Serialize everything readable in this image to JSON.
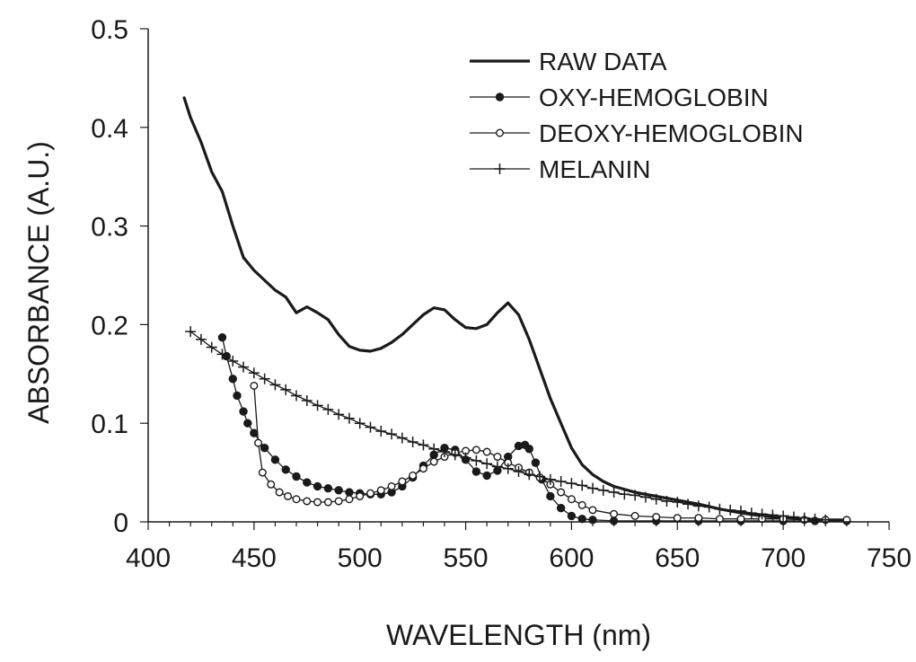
{
  "chart_data": {
    "type": "line",
    "title": "",
    "xlabel": "WAVELENGTH (nm)",
    "ylabel": "ABSORBANCE (A.U.)",
    "xlim": [
      400,
      750
    ],
    "ylim": [
      0,
      0.5
    ],
    "x_ticks": [
      400,
      450,
      500,
      550,
      600,
      650,
      700,
      750
    ],
    "x_tick_labels": [
      "400",
      "450",
      "500",
      "550",
      "600",
      "650",
      "700",
      "750"
    ],
    "y_ticks": [
      0,
      0.1,
      0.2,
      0.3,
      0.4,
      0.5
    ],
    "y_tick_labels": [
      "0",
      "0.1",
      "0.2",
      "0.3",
      "0.4",
      "0.5"
    ],
    "grid": false,
    "legend_position": "top-right",
    "color": "#1a1a1a",
    "series": [
      {
        "name": "RAW DATA",
        "marker": "none",
        "points": [
          [
            417,
            0.43
          ],
          [
            420,
            0.41
          ],
          [
            425,
            0.385
          ],
          [
            430,
            0.355
          ],
          [
            435,
            0.335
          ],
          [
            440,
            0.3
          ],
          [
            445,
            0.268
          ],
          [
            450,
            0.255
          ],
          [
            455,
            0.245
          ],
          [
            460,
            0.235
          ],
          [
            465,
            0.228
          ],
          [
            470,
            0.212
          ],
          [
            475,
            0.218
          ],
          [
            480,
            0.212
          ],
          [
            485,
            0.205
          ],
          [
            490,
            0.19
          ],
          [
            495,
            0.178
          ],
          [
            500,
            0.174
          ],
          [
            505,
            0.173
          ],
          [
            510,
            0.176
          ],
          [
            515,
            0.182
          ],
          [
            520,
            0.19
          ],
          [
            525,
            0.2
          ],
          [
            530,
            0.21
          ],
          [
            535,
            0.217
          ],
          [
            540,
            0.215
          ],
          [
            545,
            0.205
          ],
          [
            550,
            0.197
          ],
          [
            555,
            0.196
          ],
          [
            560,
            0.2
          ],
          [
            565,
            0.212
          ],
          [
            570,
            0.222
          ],
          [
            575,
            0.21
          ],
          [
            580,
            0.185
          ],
          [
            585,
            0.155
          ],
          [
            590,
            0.125
          ],
          [
            595,
            0.1
          ],
          [
            600,
            0.075
          ],
          [
            605,
            0.058
          ],
          [
            610,
            0.048
          ],
          [
            615,
            0.041
          ],
          [
            620,
            0.036
          ],
          [
            630,
            0.03
          ],
          [
            640,
            0.026
          ],
          [
            650,
            0.022
          ],
          [
            660,
            0.018
          ],
          [
            670,
            0.013
          ],
          [
            680,
            0.009
          ],
          [
            690,
            0.006
          ],
          [
            700,
            0.004
          ],
          [
            710,
            0.003
          ],
          [
            720,
            0.002
          ],
          [
            730,
            0.002
          ]
        ]
      },
      {
        "name": "OXY-HEMOGLOBIN",
        "marker": "filled-circle",
        "points": [
          [
            435,
            0.187
          ],
          [
            437,
            0.168
          ],
          [
            440,
            0.145
          ],
          [
            442,
            0.128
          ],
          [
            445,
            0.112
          ],
          [
            447,
            0.1
          ],
          [
            450,
            0.09
          ],
          [
            455,
            0.075
          ],
          [
            460,
            0.063
          ],
          [
            465,
            0.053
          ],
          [
            470,
            0.046
          ],
          [
            475,
            0.04
          ],
          [
            480,
            0.036
          ],
          [
            485,
            0.034
          ],
          [
            490,
            0.032
          ],
          [
            495,
            0.03
          ],
          [
            500,
            0.029
          ],
          [
            505,
            0.028
          ],
          [
            510,
            0.028
          ],
          [
            515,
            0.03
          ],
          [
            520,
            0.036
          ],
          [
            525,
            0.045
          ],
          [
            530,
            0.057
          ],
          [
            535,
            0.068
          ],
          [
            540,
            0.075
          ],
          [
            545,
            0.073
          ],
          [
            550,
            0.063
          ],
          [
            555,
            0.051
          ],
          [
            560,
            0.047
          ],
          [
            565,
            0.052
          ],
          [
            570,
            0.066
          ],
          [
            575,
            0.077
          ],
          [
            578,
            0.078
          ],
          [
            580,
            0.074
          ],
          [
            583,
            0.06
          ],
          [
            586,
            0.043
          ],
          [
            590,
            0.026
          ],
          [
            595,
            0.014
          ],
          [
            600,
            0.006
          ],
          [
            605,
            0.003
          ],
          [
            610,
            0.002
          ],
          [
            620,
            0.001
          ],
          [
            640,
            0.001
          ],
          [
            660,
            0.001
          ],
          [
            680,
            0.001
          ],
          [
            700,
            0.001
          ],
          [
            715,
            0.001
          ],
          [
            730,
            0.001
          ]
        ]
      },
      {
        "name": "DEOXY-HEMOGLOBIN",
        "marker": "open-circle",
        "points": [
          [
            450,
            0.138
          ],
          [
            452,
            0.08
          ],
          [
            454,
            0.05
          ],
          [
            458,
            0.038
          ],
          [
            462,
            0.03
          ],
          [
            466,
            0.026
          ],
          [
            470,
            0.023
          ],
          [
            475,
            0.021
          ],
          [
            480,
            0.02
          ],
          [
            485,
            0.02
          ],
          [
            490,
            0.021
          ],
          [
            495,
            0.023
          ],
          [
            500,
            0.026
          ],
          [
            505,
            0.029
          ],
          [
            510,
            0.032
          ],
          [
            515,
            0.036
          ],
          [
            520,
            0.041
          ],
          [
            525,
            0.047
          ],
          [
            530,
            0.054
          ],
          [
            535,
            0.061
          ],
          [
            540,
            0.066
          ],
          [
            545,
            0.07
          ],
          [
            550,
            0.072
          ],
          [
            555,
            0.073
          ],
          [
            560,
            0.071
          ],
          [
            565,
            0.066
          ],
          [
            570,
            0.06
          ],
          [
            575,
            0.055
          ],
          [
            580,
            0.05
          ],
          [
            585,
            0.045
          ],
          [
            590,
            0.038
          ],
          [
            595,
            0.03
          ],
          [
            600,
            0.023
          ],
          [
            605,
            0.017
          ],
          [
            610,
            0.012
          ],
          [
            620,
            0.008
          ],
          [
            630,
            0.006
          ],
          [
            640,
            0.005
          ],
          [
            650,
            0.004
          ],
          [
            660,
            0.004
          ],
          [
            670,
            0.003
          ],
          [
            680,
            0.003
          ],
          [
            690,
            0.003
          ],
          [
            700,
            0.003
          ],
          [
            710,
            0.002
          ],
          [
            720,
            0.002
          ],
          [
            730,
            0.002
          ]
        ]
      },
      {
        "name": "MELANIN",
        "marker": "plus",
        "points": [
          [
            420,
            0.193
          ],
          [
            425,
            0.185
          ],
          [
            430,
            0.177
          ],
          [
            435,
            0.17
          ],
          [
            440,
            0.163
          ],
          [
            445,
            0.157
          ],
          [
            450,
            0.151
          ],
          [
            455,
            0.145
          ],
          [
            460,
            0.139
          ],
          [
            465,
            0.134
          ],
          [
            470,
            0.128
          ],
          [
            475,
            0.123
          ],
          [
            480,
            0.118
          ],
          [
            485,
            0.114
          ],
          [
            490,
            0.109
          ],
          [
            495,
            0.105
          ],
          [
            500,
            0.1
          ],
          [
            505,
            0.096
          ],
          [
            510,
            0.092
          ],
          [
            515,
            0.089
          ],
          [
            520,
            0.085
          ],
          [
            525,
            0.081
          ],
          [
            530,
            0.078
          ],
          [
            535,
            0.074
          ],
          [
            540,
            0.071
          ],
          [
            545,
            0.068
          ],
          [
            550,
            0.065
          ],
          [
            555,
            0.062
          ],
          [
            560,
            0.059
          ],
          [
            565,
            0.056
          ],
          [
            570,
            0.054
          ],
          [
            575,
            0.051
          ],
          [
            580,
            0.048
          ],
          [
            585,
            0.046
          ],
          [
            590,
            0.043
          ],
          [
            595,
            0.041
          ],
          [
            600,
            0.039
          ],
          [
            605,
            0.037
          ],
          [
            610,
            0.034
          ],
          [
            615,
            0.032
          ],
          [
            620,
            0.03
          ],
          [
            625,
            0.028
          ],
          [
            630,
            0.027
          ],
          [
            635,
            0.025
          ],
          [
            640,
            0.023
          ],
          [
            645,
            0.021
          ],
          [
            650,
            0.02
          ],
          [
            655,
            0.018
          ],
          [
            660,
            0.016
          ],
          [
            665,
            0.015
          ],
          [
            670,
            0.013
          ],
          [
            675,
            0.012
          ],
          [
            680,
            0.011
          ],
          [
            685,
            0.009
          ],
          [
            690,
            0.008
          ],
          [
            695,
            0.007
          ],
          [
            700,
            0.006
          ],
          [
            705,
            0.005
          ],
          [
            710,
            0.004
          ],
          [
            715,
            0.003
          ],
          [
            720,
            0.002
          ]
        ]
      }
    ]
  }
}
